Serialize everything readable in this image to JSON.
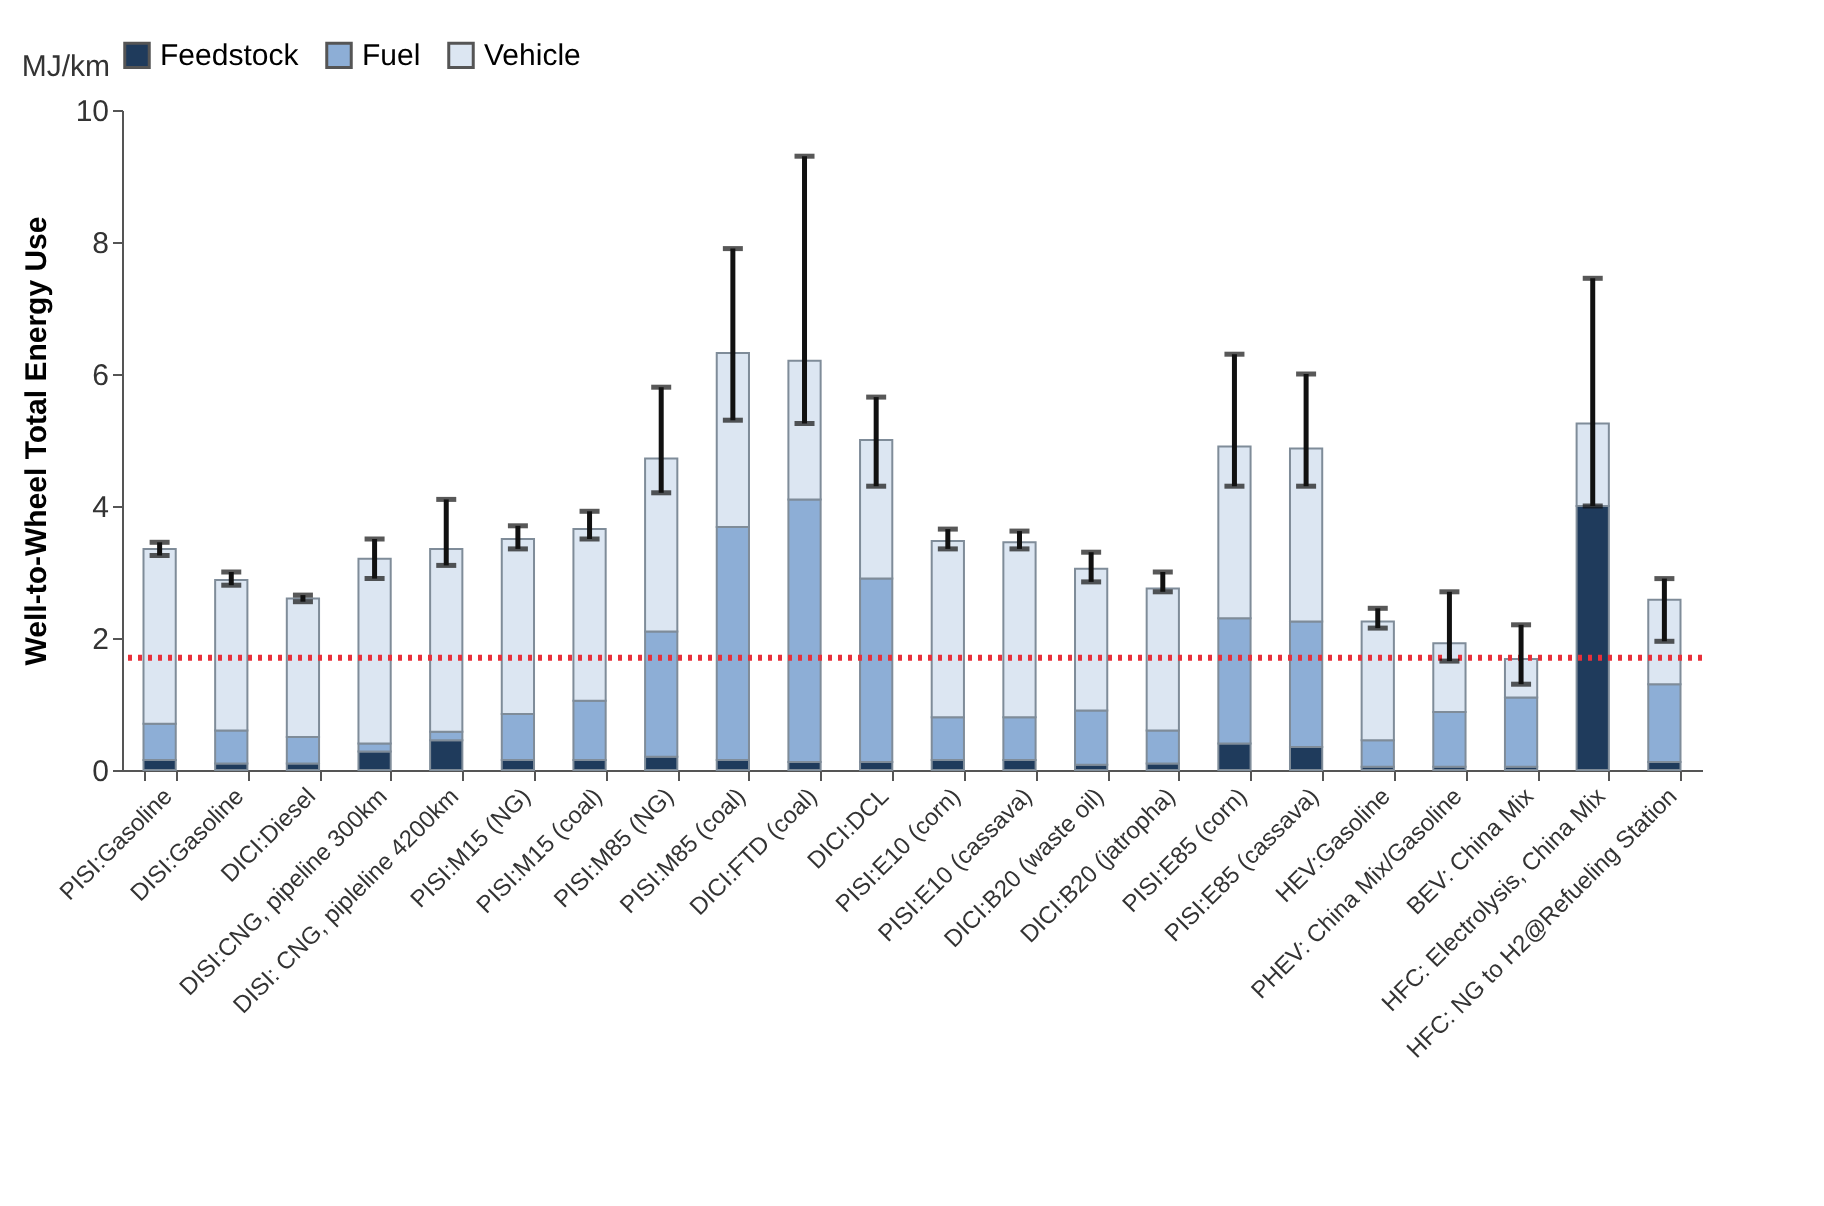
{
  "chart_data": {
    "type": "bar",
    "stacked": true,
    "ylabel": "Well-to-Wheel Total Energy Use",
    "annotations": [
      "MJ/km"
    ],
    "categories": [
      "PISI:Gasoline",
      "DISI:Gasoline",
      "DICI:Diesel",
      "DISI:CNG, pipeline 300km",
      "DISI: CNG, pipleline 4200km",
      "PISI:M15 (NG)",
      "PISI:M15 (coal)",
      "PISI:M85 (NG)",
      "PISI:M85 (coal)",
      "DICI:FTD (coal)",
      "DICI:DCL",
      "PISI:E10 (corn)",
      "PISI:E10 (cassava)",
      "DICI:B20 (waste oil)",
      "DICI:B20 (jatropha)",
      "PISI:E85 (corn)",
      "PISI:E85 (cassava)",
      "HEV:Gasoline",
      "PHEV: China Mix/Gasoline",
      "BEV: China Mix",
      "HFC: Electrolysis, China Mix",
      "HFC: NG to H2@Refueling Station"
    ],
    "series": [
      {
        "name": "Feedstock",
        "color": "#1f3b5c",
        "values": [
          0.15,
          0.1,
          0.1,
          0.28,
          0.45,
          0.15,
          0.15,
          0.2,
          0.15,
          0.12,
          0.12,
          0.15,
          0.15,
          0.08,
          0.1,
          0.4,
          0.35,
          0.05,
          0.05,
          0.05,
          4.0,
          0.12
        ]
      },
      {
        "name": "Fuel",
        "color": "#8daed6",
        "values": [
          0.55,
          0.5,
          0.4,
          0.12,
          0.13,
          0.7,
          0.9,
          1.9,
          3.53,
          3.98,
          2.78,
          0.65,
          0.65,
          0.82,
          0.5,
          1.9,
          1.9,
          0.4,
          0.83,
          1.05,
          0,
          1.18
        ]
      },
      {
        "name": "Vehicle",
        "color": "#dce6f2",
        "values": [
          2.65,
          2.28,
          2.1,
          2.8,
          2.77,
          2.65,
          2.6,
          2.62,
          2.64,
          2.1,
          2.1,
          2.67,
          2.65,
          2.15,
          2.15,
          2.6,
          2.62,
          1.8,
          1.04,
          0.58,
          1.25,
          1.28
        ],
        "errors": [
          [
            3.25,
            3.45
          ],
          [
            2.8,
            3.0
          ],
          [
            2.55,
            2.65
          ],
          [
            2.9,
            3.5
          ],
          [
            3.1,
            4.1
          ],
          [
            3.35,
            3.7
          ],
          [
            3.5,
            3.92
          ],
          [
            4.2,
            5.8
          ],
          [
            5.3,
            7.9
          ],
          [
            5.25,
            9.3
          ],
          [
            4.3,
            5.65
          ],
          [
            3.35,
            3.65
          ],
          [
            3.35,
            3.62
          ],
          [
            2.85,
            3.3
          ],
          [
            2.7,
            3.0
          ],
          [
            4.3,
            6.3
          ],
          [
            4.3,
            6.0
          ],
          [
            2.15,
            2.45
          ],
          [
            1.65,
            2.7
          ],
          [
            1.3,
            2.2
          ],
          [
            4.0,
            7.45
          ],
          [
            1.95,
            2.9
          ]
        ]
      }
    ],
    "ylim": [
      0,
      10
    ],
    "yticks": [
      0,
      2,
      4,
      6,
      8,
      10
    ],
    "grid": false,
    "legend": "top",
    "ref_lines": [
      {
        "axis": "y",
        "value": 1.7,
        "color": "#e8303a",
        "line_style": "dotted"
      }
    ]
  }
}
